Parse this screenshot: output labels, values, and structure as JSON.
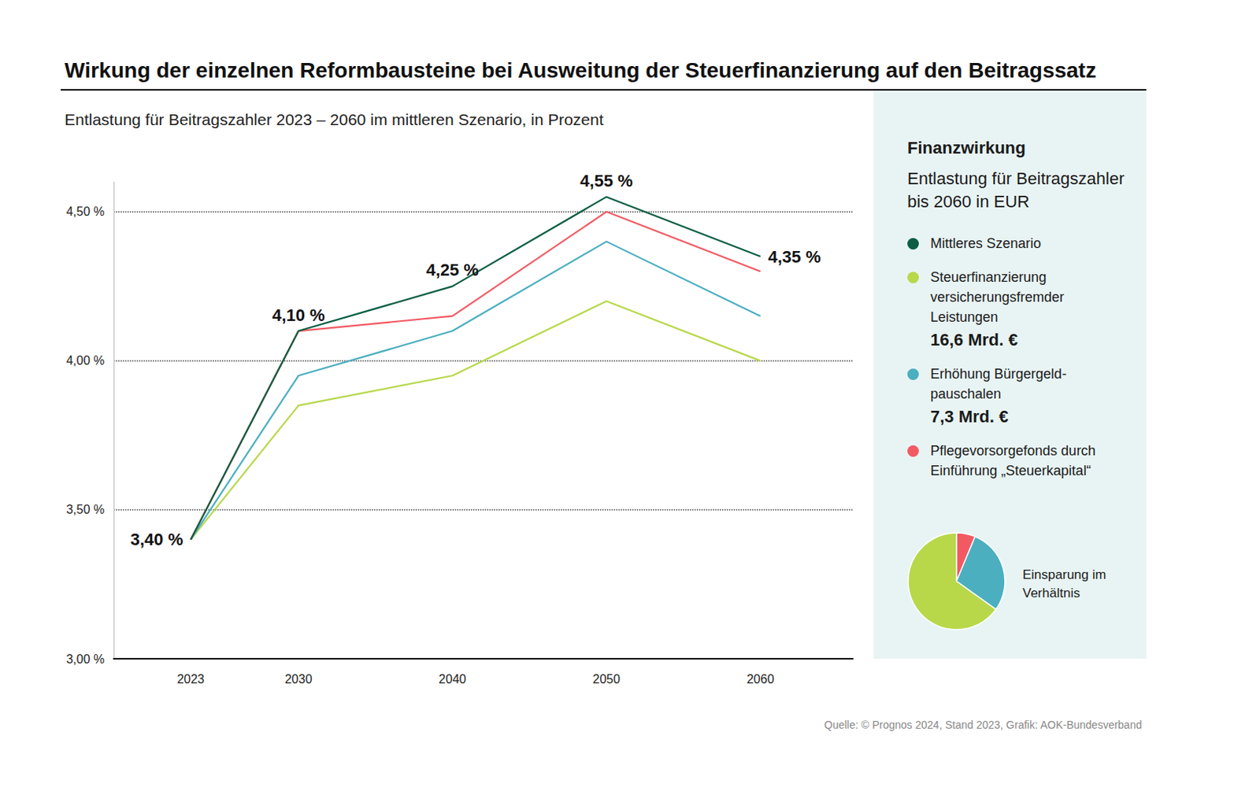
{
  "chart_data": [
    {
      "type": "line",
      "title": "Wirkung der einzelnen Reformbausteine bei Ausweitung der Steuerfinanzierung auf den Beitragssatz",
      "subtitle": "Entlastung für Beitragszahler 2023 – 2060 im mittleren Szenario, in Prozent",
      "source": "Quelle: © Prognos 2024, Stand 2023, Grafik: AOK-Bundesverband",
      "x": [
        2023,
        2030,
        2040,
        2050,
        2060
      ],
      "xlim": [
        2018,
        2066
      ],
      "xticks": [
        2023,
        2030,
        2040,
        2050,
        2060
      ],
      "ylim": [
        3.0,
        4.6
      ],
      "yticks": [
        {
          "value": 3.0,
          "label": "3,00 %"
        },
        {
          "value": 3.5,
          "label": "3,50 %"
        },
        {
          "value": 4.0,
          "label": "4,00 %"
        },
        {
          "value": 4.5,
          "label": "4,50 %"
        }
      ],
      "grid": true,
      "series": [
        {
          "name": "Mittleres Szenario",
          "color": "#0b5e43",
          "values": [
            3.4,
            4.1,
            4.25,
            4.55,
            4.35
          ],
          "data_labels": true,
          "value_labels": [
            "3,40 %",
            "4,10 %",
            "4,25 %",
            "4,55 %",
            "4,35 %"
          ]
        },
        {
          "name": "Steuerfinanzierung versicherungsfremder Leistungen",
          "color": "#b8d84a",
          "values": [
            3.4,
            3.85,
            3.95,
            4.2,
            4.0
          ]
        },
        {
          "name": "Erhöhung Bürgergeld­pauschalen",
          "color": "#4bafc0",
          "values": [
            3.4,
            3.95,
            4.1,
            4.4,
            4.15
          ]
        },
        {
          "name": "Pflegevorsorgefonds durch Einführung „Steuerkapital“",
          "color": "#f25a63",
          "values": [
            3.4,
            4.1,
            4.15,
            4.5,
            4.3
          ]
        }
      ]
    },
    {
      "type": "pie",
      "title": "Einsparung im Verhältnis",
      "panel_title": "Finanzwirkung",
      "panel_subtitle": "Entlastung für Beitrags­zahler bis 2060 in EUR",
      "categories": [
        "Pflegevorsorgefonds durch Einführung „Steuerkapital“",
        "Erhöhung Bürgergeld­pauschalen",
        "Steuerfinanzierung versicherungsfremder Leistungen"
      ],
      "values": [
        1.6,
        7.3,
        16.6
      ],
      "value_labels": [
        null,
        "7,3 Mrd. €",
        "16,6 Mrd. €"
      ],
      "colors": [
        "#f25a63",
        "#4bafc0",
        "#b8d84a"
      ]
    }
  ]
}
